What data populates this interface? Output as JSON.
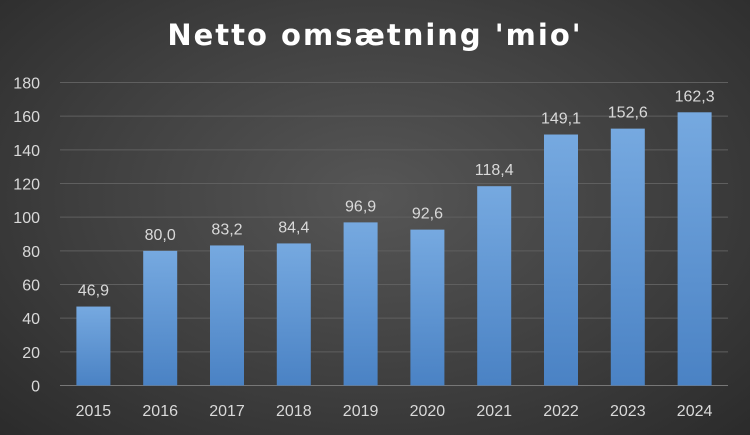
{
  "chart_data": {
    "type": "bar",
    "title": "Netto omsætning 'mio'",
    "xlabel": "",
    "ylabel": "",
    "categories": [
      "2015",
      "2016",
      "2017",
      "2018",
      "2019",
      "2020",
      "2021",
      "2022",
      "2023",
      "2024"
    ],
    "values": [
      46.9,
      80.0,
      83.2,
      84.4,
      96.9,
      92.6,
      118.4,
      149.1,
      152.6,
      162.3
    ],
    "value_labels": [
      "46,9",
      "80,0",
      "83,2",
      "84,4",
      "96,9",
      "92,6",
      "118,4",
      "149,1",
      "152,6",
      "162,3"
    ],
    "yticks": [
      "0",
      "20",
      "40",
      "60",
      "80",
      "100",
      "120",
      "140",
      "160",
      "180"
    ],
    "ylim": [
      0,
      180
    ],
    "grid": true,
    "legend": "none",
    "colors": {
      "bar_top": "#76a9e0",
      "bar_bottom": "#4a82c4",
      "text": "#d9d9d9",
      "gridline": "#5f5f5f"
    }
  }
}
